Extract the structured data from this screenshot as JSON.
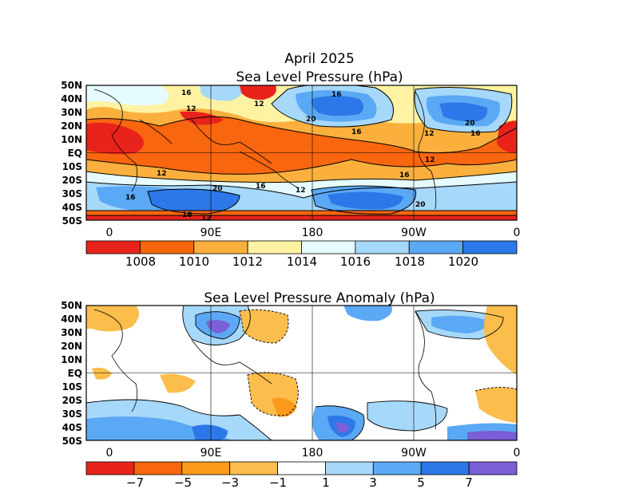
{
  "top_panel": {
    "title_line1": "April 2025",
    "title_line2": "Sea Level Pressure (hPa)",
    "lat_labels": [
      "50N",
      "40N",
      "30N",
      "20N",
      "10N",
      "EQ",
      "10S",
      "20S",
      "30S",
      "40S",
      "50S"
    ],
    "lon_labels": [
      "0",
      "90E",
      "180",
      "90W",
      "0"
    ],
    "colorbar": {
      "colors": [
        "#e8231c",
        "#f8660f",
        "#fbb03e",
        "#fff3a3",
        "#e6fbfe",
        "#a6d8fa",
        "#5ba8f5",
        "#2c78e8"
      ],
      "labels": [
        "1008",
        "1010",
        "1012",
        "1014",
        "1016",
        "1018",
        "1020"
      ]
    },
    "contour_labels": [
      "16",
      "12",
      "20",
      "16",
      "16",
      "20",
      "12",
      "16",
      "12",
      "12",
      "16",
      "20",
      "16",
      "12",
      "12",
      "20",
      "16",
      "16",
      "12"
    ]
  },
  "bottom_panel": {
    "title": "Sea Level Pressure Anomaly (hPa)",
    "lat_labels": [
      "50N",
      "40N",
      "30N",
      "20N",
      "10N",
      "EQ",
      "10S",
      "20S",
      "30S",
      "40S",
      "50S"
    ],
    "lon_labels": [
      "0",
      "90E",
      "180",
      "90W",
      "0"
    ],
    "colorbar": {
      "colors": [
        "#e8231c",
        "#f8660f",
        "#fb9a1a",
        "#fbbd4b",
        "#ffffff",
        "#a6d8fa",
        "#5ba8f5",
        "#2c78e8",
        "#7a5fd6"
      ],
      "labels": [
        "−7",
        "−5",
        "−3",
        "−1",
        "1",
        "3",
        "5",
        "7"
      ]
    }
  },
  "legend_semantics": {
    "map_type": "global latitude-longitude contour maps, 50S to 50N",
    "colors": {
      "high": "#2c78e8",
      "low": "#e8231c",
      "neutral": "#ffffff"
    }
  }
}
